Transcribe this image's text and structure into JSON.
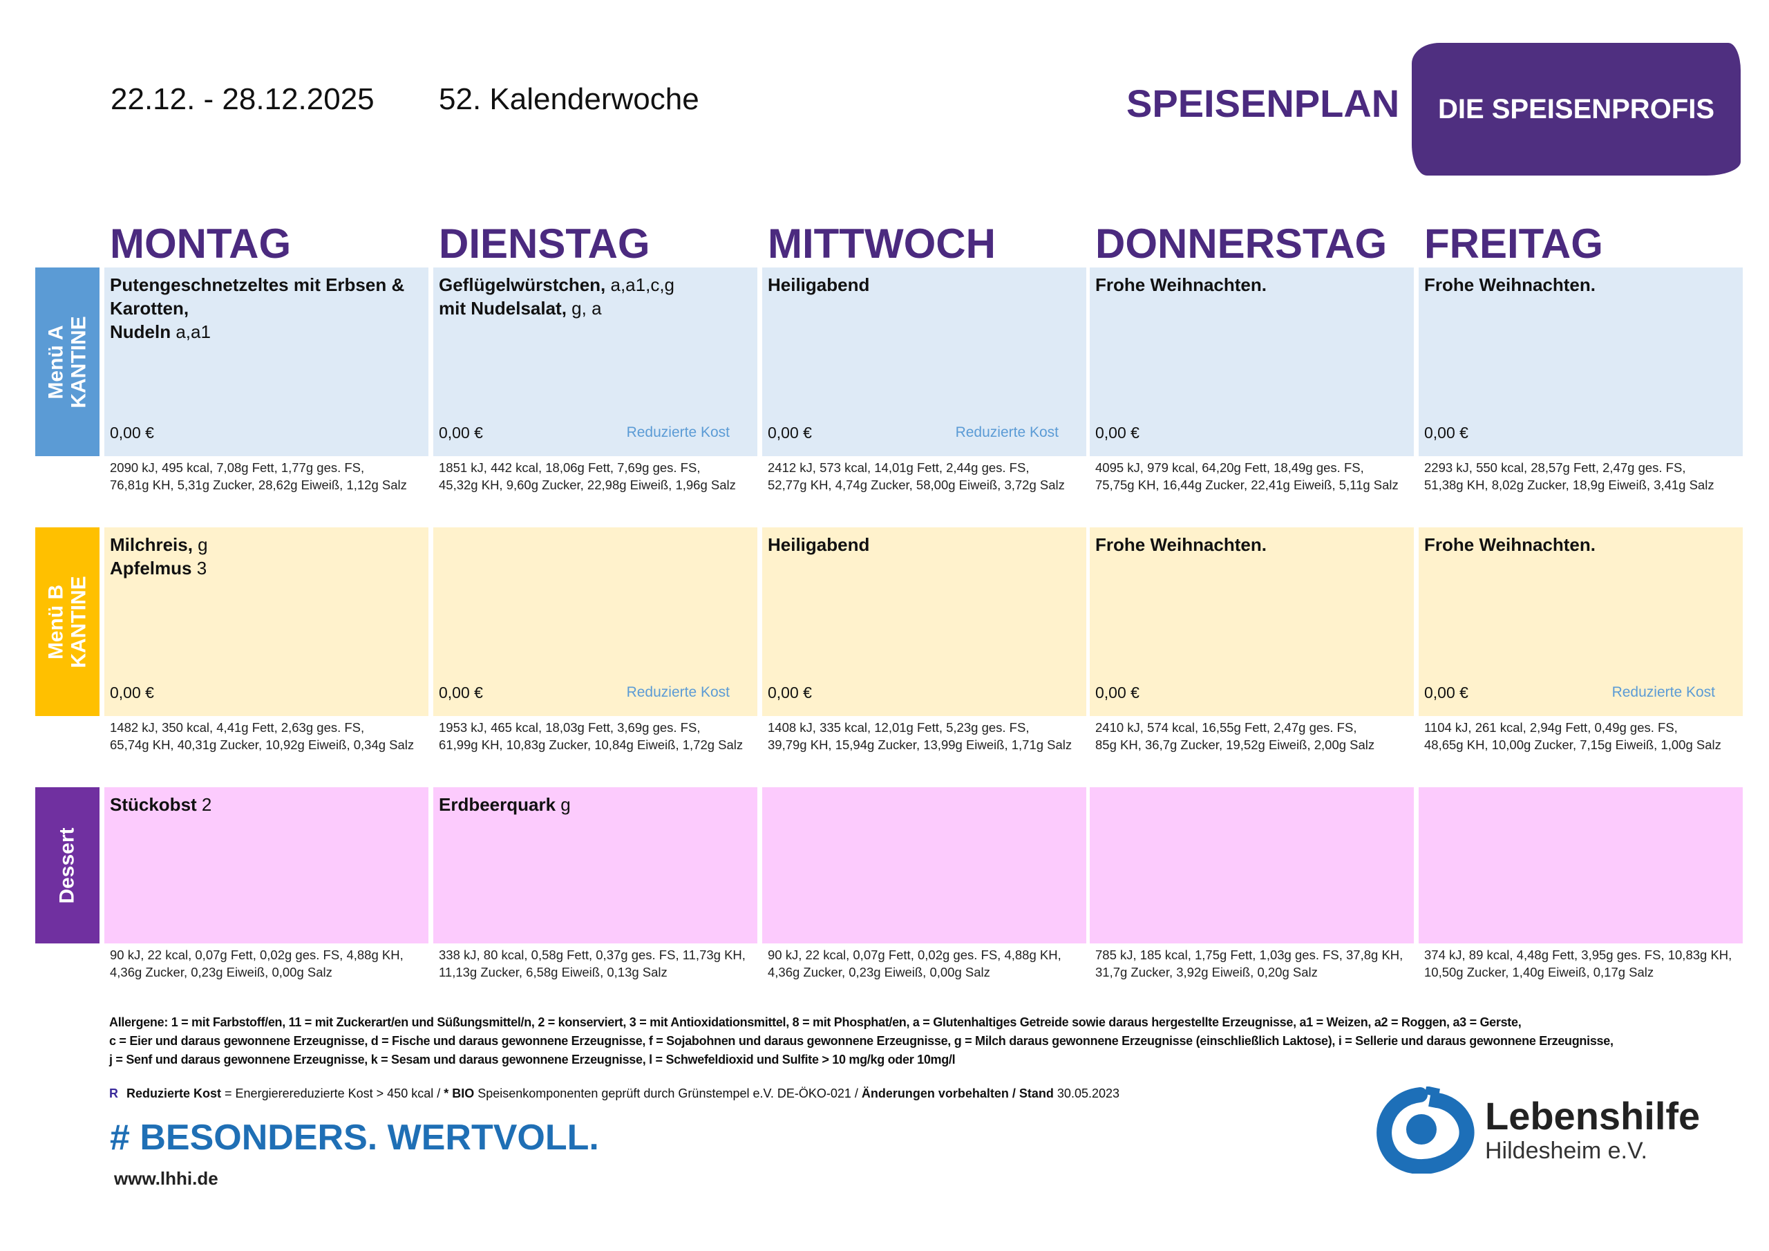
{
  "header": {
    "date_range": "22.12. - 28.12.2025",
    "week": "52. Kalenderwoche",
    "title": "SPEISENPLAN",
    "brand": "DIE SPEISENPROFIS"
  },
  "days": [
    "MONTAG",
    "DIENSTAG",
    "MITTWOCH",
    "DONNERSTAG",
    "FREITAG"
  ],
  "colors": {
    "menu_a_label": "#5b9bd5",
    "menu_a_cell": "#deeaf6",
    "menu_b_label": "#ffc000",
    "menu_b_cell": "#fff2cc",
    "dessert_label": "#7030a0",
    "dessert_cell": "#fccbfd",
    "reduced": "#5b9bd5"
  },
  "rows": [
    {
      "label": "Menü A\nKANTINE",
      "key": "menu_a",
      "cells": [
        {
          "lines": [
            {
              "name": "Putengeschnetzeltes mit Erbsen & Karotten,",
              "allergens": ""
            },
            {
              "name": " Nudeln",
              "allergens": " a,a1"
            }
          ],
          "price": "0,00 €",
          "reduced": "",
          "nutrition": [
            "2090 kJ, 495 kcal, 7,08g Fett, 1,77g ges. FS,",
            "76,81g KH, 5,31g Zucker, 28,62g Eiweiß, 1,12g Salz"
          ]
        },
        {
          "lines": [
            {
              "name": "Geflügelwürstchen,",
              "allergens": " a,a1,c,g"
            },
            {
              "name": "mit Nudelsalat,",
              "allergens": " g, a"
            }
          ],
          "price": "0,00 €",
          "reduced": "Reduzierte Kost",
          "nutrition": [
            "1851 kJ, 442 kcal, 18,06g Fett, 7,69g ges. FS,",
            "45,32g KH, 9,60g Zucker, 22,98g Eiweiß, 1,96g Salz"
          ]
        },
        {
          "lines": [
            {
              "name": "Heiligabend",
              "allergens": ""
            }
          ],
          "price": "0,00 €",
          "reduced": "Reduzierte Kost",
          "nutrition": [
            "2412 kJ, 573 kcal, 14,01g Fett, 2,44g ges. FS,",
            "52,77g KH, 4,74g Zucker, 58,00g Eiweiß, 3,72g Salz"
          ]
        },
        {
          "lines": [
            {
              "name": "Frohe Weihnachten.",
              "allergens": ""
            }
          ],
          "price": "0,00 €",
          "reduced": "",
          "nutrition": [
            "4095 kJ, 979 kcal, 64,20g Fett, 18,49g ges. FS,",
            "75,75g KH, 16,44g Zucker, 22,41g Eiweiß, 5,11g Salz"
          ]
        },
        {
          "lines": [
            {
              "name": "Frohe Weihnachten.",
              "allergens": ""
            }
          ],
          "price": "0,00 €",
          "reduced": "",
          "nutrition": [
            "2293 kJ, 550 kcal, 28,57g Fett, 2,47g ges. FS,",
            "51,38g KH, 8,02g Zucker, 18,9g Eiweiß, 3,41g Salz"
          ]
        }
      ]
    },
    {
      "label": "Menü B\nKANTINE",
      "key": "menu_b",
      "cells": [
        {
          "lines": [
            {
              "name": "Milchreis,",
              "allergens": " g"
            },
            {
              "name": "Apfelmus",
              "allergens": " 3"
            }
          ],
          "price": "0,00 €",
          "reduced": "",
          "nutrition": [
            "1482 kJ, 350 kcal, 4,41g Fett, 2,63g ges. FS,",
            "65,74g KH, 40,31g Zucker, 10,92g Eiweiß, 0,34g Salz"
          ]
        },
        {
          "lines": [],
          "price": "0,00 €",
          "reduced": "Reduzierte Kost",
          "nutrition": [
            "1953 kJ, 465 kcal, 18,03g Fett, 3,69g ges. FS,",
            "61,99g KH, 10,83g Zucker, 10,84g Eiweiß, 1,72g Salz"
          ]
        },
        {
          "lines": [
            {
              "name": "Heiligabend",
              "allergens": ""
            }
          ],
          "price": "0,00 €",
          "reduced": "",
          "nutrition": [
            "1408 kJ, 335 kcal, 12,01g Fett, 5,23g ges. FS,",
            "39,79g KH, 15,94g Zucker, 13,99g Eiweiß, 1,71g Salz"
          ]
        },
        {
          "lines": [
            {
              "name": "Frohe Weihnachten.",
              "allergens": ""
            }
          ],
          "price": "0,00 €",
          "reduced": "",
          "nutrition": [
            "2410 kJ, 574 kcal, 16,55g Fett, 2,47g ges. FS,",
            "85g KH, 36,7g Zucker, 19,52g Eiweiß, 2,00g Salz"
          ]
        },
        {
          "lines": [
            {
              "name": "Frohe Weihnachten.",
              "allergens": ""
            }
          ],
          "price": "0,00 €",
          "reduced": "Reduzierte Kost",
          "nutrition": [
            "1104 kJ, 261 kcal, 2,94g Fett, 0,49g ges. FS,",
            "48,65g KH, 10,00g Zucker, 7,15g Eiweiß, 1,00g Salz"
          ]
        }
      ]
    },
    {
      "label": "Dessert",
      "key": "dessert",
      "cells": [
        {
          "lines": [
            {
              "name": "Stückobst",
              "allergens": " 2"
            }
          ],
          "price": "",
          "reduced": "",
          "nutrition": [
            "90 kJ, 22 kcal, 0,07g Fett, 0,02g ges. FS, 4,88g KH,",
            "4,36g Zucker, 0,23g Eiweiß, 0,00g Salz"
          ]
        },
        {
          "lines": [
            {
              "name": "Erdbeerquark",
              "allergens": " g"
            }
          ],
          "price": "",
          "reduced": "",
          "nutrition": [
            "338 kJ, 80 kcal, 0,58g Fett, 0,37g ges. FS, 11,73g KH,",
            "11,13g Zucker, 6,58g Eiweiß, 0,13g Salz"
          ]
        },
        {
          "lines": [],
          "price": "",
          "reduced": "",
          "nutrition": [
            "90 kJ, 22 kcal, 0,07g Fett, 0,02g ges. FS, 4,88g KH,",
            "4,36g Zucker, 0,23g Eiweiß, 0,00g Salz"
          ]
        },
        {
          "lines": [],
          "price": "",
          "reduced": "",
          "nutrition": [
            "785 kJ, 185 kcal, 1,75g Fett, 1,03g ges. FS, 37,8g KH,",
            "31,7g Zucker, 3,92g Eiweiß, 0,20g Salz"
          ]
        },
        {
          "lines": [],
          "price": "",
          "reduced": "",
          "nutrition": [
            "374 kJ, 89 kcal, 4,48g Fett, 3,95g ges. FS, 10,83g KH,",
            "10,50g Zucker, 1,40g Eiweiß, 0,17g Salz"
          ]
        }
      ]
    }
  ],
  "legend": {
    "allergens": [
      "Allergene: 1 = mit Farbstoff/en, 11 = mit Zuckerart/en und Süßungsmittel/n, 2 = konserviert, 3 = mit Antioxidationsmittel, 8 = mit Phosphat/en, a = Glutenhaltiges Getreide sowie daraus hergestellte Erzeugnisse, a1 = Weizen, a2 = Roggen, a3 = Gerste,",
      "c = Eier und daraus gewonnene Erzeugnisse, d = Fische und daraus gewonnene Erzeugnisse, f = Sojabohnen und daraus gewonnene Erzeugnisse, g = Milch daraus gewonnene Erzeugnisse (einschließlich Laktose), i = Sellerie und daraus gewonnene Erzeugnisse,",
      "j = Senf und daraus gewonnene Erzeugnisse, k = Sesam und daraus gewonnene Erzeugnisse, l = Schwefeldioxid und Sulfite > 10 mg/kg oder 10mg/l"
    ],
    "r_symbol": "R",
    "reduced_label": "Reduzierte Kost",
    "reduced_text": " = Energierereduzierte Kost > 450 kcal / ",
    "bio_label": "* BIO",
    "bio_text": " Speisenkomponenten geprüft durch Grünstempel e.V. DE-ÖKO-021 / ",
    "changes_label": "Änderungen vorbehalten / Stand",
    "stand_date": " 30.05.2023"
  },
  "footer": {
    "slogan": "# BESONDERS. WERTVOLL.",
    "url": "www.lhhi.de",
    "org_name": "Lebenshilfe",
    "org_sub": "Hildesheim e.V."
  }
}
